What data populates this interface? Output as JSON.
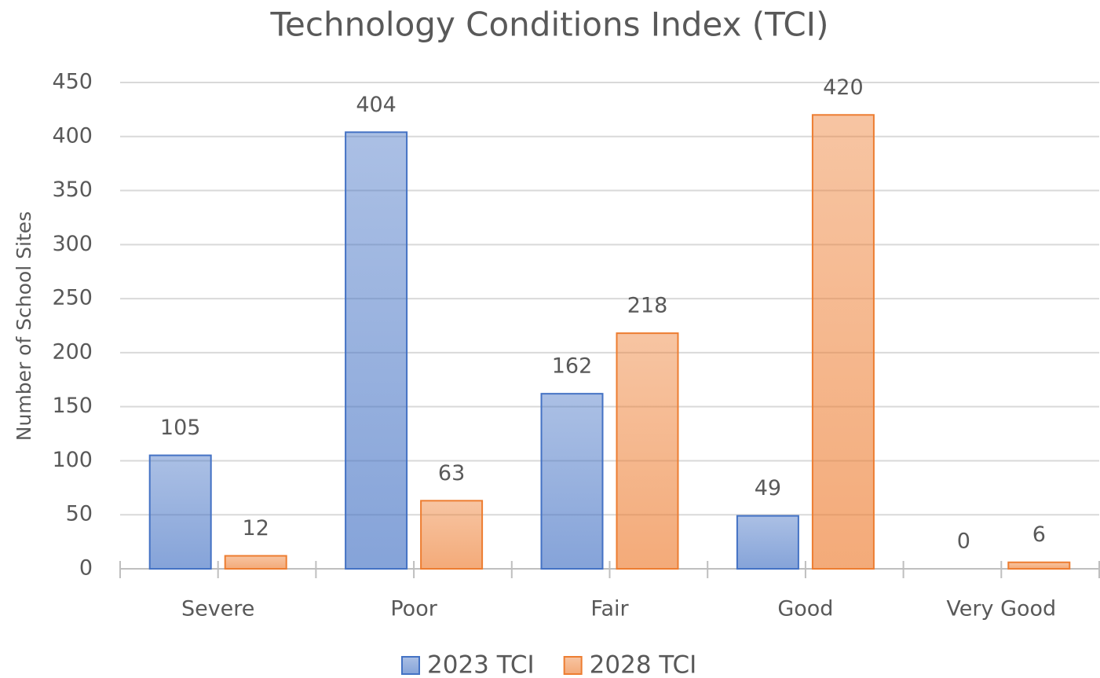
{
  "chart_data": {
    "type": "bar",
    "title": "Technology Conditions Index (TCI)",
    "y_label": "Number of School Sites",
    "categories": [
      "Severe",
      "Poor",
      "Fair",
      "Good",
      "Very Good"
    ],
    "series": [
      {
        "name": "2023 TCI",
        "color": "#4472c4",
        "values": [
          105,
          404,
          162,
          49,
          0
        ]
      },
      {
        "name": "2028 TCI",
        "color": "#ed7d31",
        "values": [
          12,
          63,
          218,
          420,
          6
        ]
      }
    ],
    "ylim": [
      0,
      450
    ],
    "yticks": [
      0,
      50,
      100,
      150,
      200,
      250,
      300,
      350,
      400,
      450
    ],
    "grid": true,
    "legend": "bottom"
  }
}
